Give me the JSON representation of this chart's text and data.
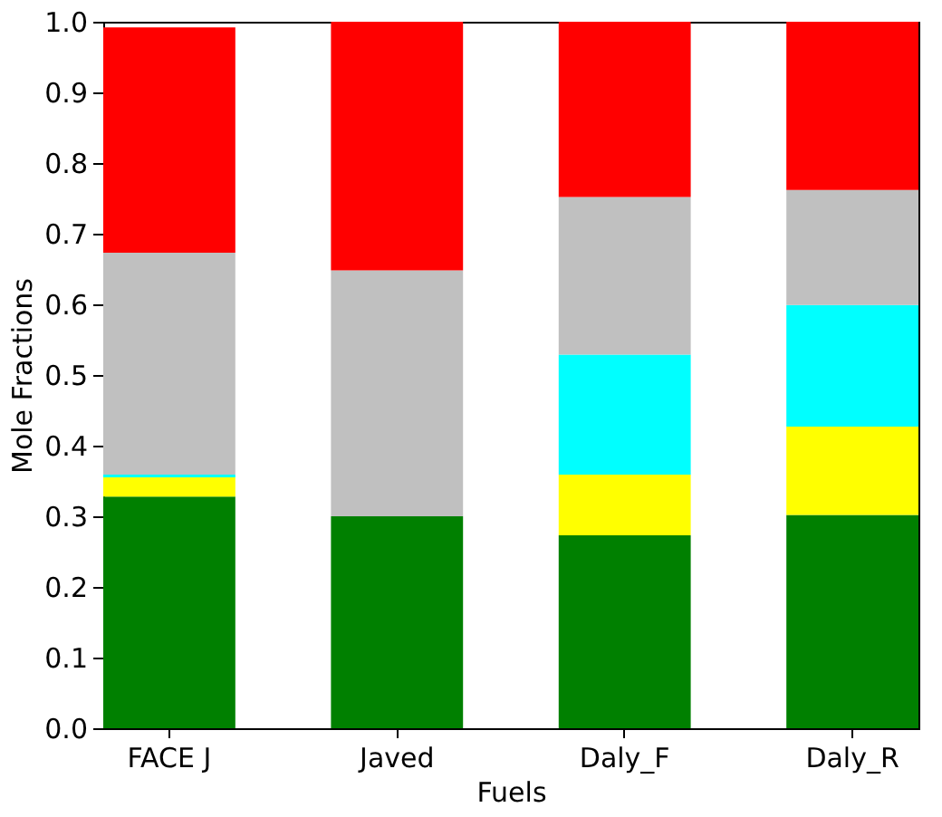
{
  "chart_data": {
    "type": "bar",
    "stacked": true,
    "xlabel": "Fuels",
    "ylabel": "Mole Fractions",
    "categories": [
      "FACE J",
      "Javed",
      "Daly_F",
      "Daly_R"
    ],
    "series": [
      {
        "color": "#008000",
        "values": [
          0.328,
          0.3,
          0.273,
          0.302
        ]
      },
      {
        "color": "#ffff00",
        "values": [
          0.027,
          0,
          0.086,
          0.125
        ]
      },
      {
        "color": "#00ffff",
        "values": [
          0.004,
          0,
          0.17,
          0.172
        ]
      },
      {
        "color": "#c0c0c0",
        "values": [
          0.314,
          0.348,
          0.223,
          0.163
        ]
      },
      {
        "color": "#ff0000",
        "values": [
          0.319,
          0.352,
          0.248,
          0.238
        ]
      }
    ],
    "ylim": [
      0,
      1
    ],
    "yticks": [
      {
        "value": 0,
        "label": "0.0"
      },
      0.1,
      0.2,
      0.3,
      0.4,
      0.5,
      0.6,
      0.7,
      0.8,
      0.9,
      {
        "value": 1,
        "label": "1.0"
      }
    ],
    "grid": false,
    "legend": false
  }
}
